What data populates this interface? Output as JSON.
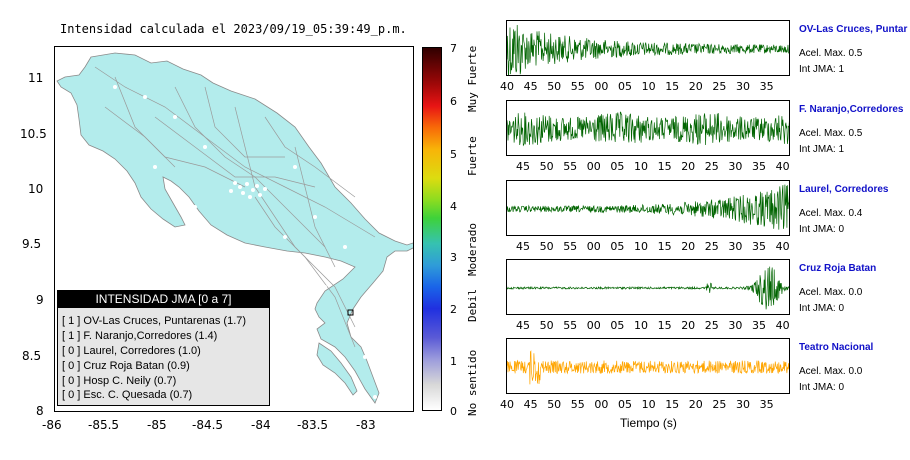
{
  "title": "Intensidad calculada el 2023/09/19_05:39:49_p.m.",
  "map": {
    "lat_ticks": [
      "11",
      "10.5",
      "10",
      "9.5",
      "9",
      "8.5",
      "8"
    ],
    "lon_ticks": [
      "-86",
      "-85.5",
      "-85",
      "-84.5",
      "-84",
      "-83.5",
      "-83"
    ],
    "land_color": "#b3ecec"
  },
  "legend": {
    "title": "INTENSIDAD JMA [0 a 7]",
    "items": [
      "[ 1 ] OV-Las Cruces, Puntarenas (1.7)",
      "[ 1 ] F. Naranjo,Corredores (1.4)",
      "[ 0 ] Laurel, Corredores (1.0)",
      "[ 0 ] Cruz Roja Batan (0.9)",
      "[ 0 ] Hosp C. Neily (0.7)",
      "[ 0 ] Esc. C. Quesada (0.7)"
    ]
  },
  "colorbar": {
    "ticks": [
      "7",
      "6",
      "5",
      "4",
      "3",
      "2",
      "1",
      "0"
    ],
    "labels": [
      "Muy Fuerte",
      "Fuerte",
      "Moderado",
      "Debil",
      "No sentido"
    ]
  },
  "traces": [
    {
      "name": "OV-Las Cruces, Puntar",
      "acel": "Acel. Max. 0.5",
      "int": "Int JMA: 1",
      "color": "#006400",
      "xticks": [
        "40",
        "45",
        "50",
        "55",
        "00",
        "05",
        "10",
        "15",
        "20",
        "25",
        "30",
        "35"
      ],
      "profile": "early"
    },
    {
      "name": "F. Naranjo,Corredores",
      "acel": "Acel. Max. 0.5",
      "int": "Int JMA: 1",
      "color": "#006400",
      "xticks": [
        "45",
        "50",
        "55",
        "00",
        "05",
        "10",
        "15",
        "20",
        "25",
        "30",
        "35",
        "40"
      ],
      "profile": "flat"
    },
    {
      "name": "Laurel, Corredores",
      "acel": "Acel. Max. 0.4",
      "int": "Int JMA: 0",
      "color": "#006400",
      "xticks": [
        "45",
        "50",
        "55",
        "00",
        "05",
        "10",
        "15",
        "20",
        "25",
        "30",
        "35",
        "40"
      ],
      "profile": "late"
    },
    {
      "name": "Cruz Roja Batan",
      "acel": "Acel. Max. 0.0",
      "int": "Int JMA: 0",
      "color": "#006400",
      "xticks": [
        "45",
        "50",
        "55",
        "00",
        "05",
        "10",
        "15",
        "20",
        "25",
        "30",
        "35",
        "40"
      ],
      "profile": "spike"
    },
    {
      "name": "Teatro Nacional",
      "acel": "Acel. Max. 0.0",
      "int": "Int JMA: 0",
      "color": "#ffa500",
      "xticks": [
        "40",
        "45",
        "50",
        "55",
        "00",
        "05",
        "10",
        "15",
        "20",
        "25",
        "30",
        "35"
      ],
      "profile": "orange"
    }
  ],
  "xlabel": "Tiempo (s)"
}
